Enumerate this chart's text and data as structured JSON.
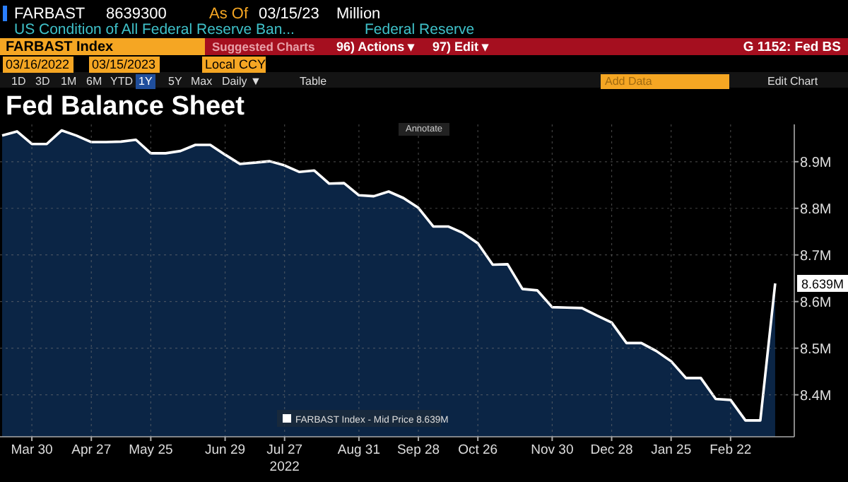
{
  "chart_data": {
    "type": "area",
    "title": "Fed Balance Sheet",
    "xlabel": "2022",
    "annotations": [
      "FARBAST",
      "8639300",
      "As Of",
      "03/15/23",
      "Million",
      "US Condition of All Federal Reserve Ban...",
      "Federal Reserve",
      "FARBAST Index",
      "Suggested Charts",
      "96) Actions ▾",
      "97) Edit ▾",
      "G 1152: Fed BS",
      "03/16/2022",
      "03/15/2023",
      "Local CCY",
      "1D",
      "3D",
      "1M",
      "6M",
      "YTD",
      "1Y",
      "5Y",
      "Max",
      "Daily ▼",
      "Table",
      "Add Data",
      "Edit Chart",
      "Annotate",
      {
        "text": "8.639M",
        "x": "2023-03-15",
        "y": 8.639
      }
    ],
    "x": [
      "2022-03-16",
      "2022-03-23",
      "2022-03-30",
      "2022-04-06",
      "2022-04-13",
      "2022-04-20",
      "2022-04-27",
      "2022-05-04",
      "2022-05-11",
      "2022-05-18",
      "2022-05-25",
      "2022-06-01",
      "2022-06-08",
      "2022-06-15",
      "2022-06-22",
      "2022-06-29",
      "2022-07-06",
      "2022-07-13",
      "2022-07-20",
      "2022-07-27",
      "2022-08-03",
      "2022-08-10",
      "2022-08-17",
      "2022-08-24",
      "2022-08-31",
      "2022-09-07",
      "2022-09-14",
      "2022-09-21",
      "2022-09-28",
      "2022-10-05",
      "2022-10-12",
      "2022-10-19",
      "2022-10-26",
      "2022-11-02",
      "2022-11-09",
      "2022-11-16",
      "2022-11-23",
      "2022-11-30",
      "2022-12-07",
      "2022-12-14",
      "2022-12-21",
      "2022-12-28",
      "2023-01-04",
      "2023-01-11",
      "2023-01-18",
      "2023-01-25",
      "2023-02-01",
      "2023-02-08",
      "2023-02-15",
      "2023-02-22",
      "2023-03-01",
      "2023-03-08",
      "2023-03-15"
    ],
    "series": [
      {
        "name": "FARBAST Index - Mid Price 8.639M",
        "color": "#ffffff",
        "values": [
          8.956,
          8.965,
          8.938,
          8.938,
          8.967,
          8.956,
          8.942,
          8.942,
          8.943,
          8.947,
          8.918,
          8.918,
          8.923,
          8.936,
          8.936,
          8.915,
          8.895,
          8.898,
          8.901,
          8.892,
          8.878,
          8.881,
          8.853,
          8.854,
          8.828,
          8.826,
          8.836,
          8.822,
          8.801,
          8.761,
          8.761,
          8.747,
          8.725,
          8.679,
          8.68,
          8.627,
          8.624,
          8.588,
          8.587,
          8.586,
          8.57,
          8.555,
          8.511,
          8.511,
          8.494,
          8.472,
          8.436,
          8.436,
          8.391,
          8.389,
          8.345,
          8.345,
          8.639
        ]
      }
    ],
    "xlim": [
      "2022-03-15",
      "2023-03-24"
    ],
    "xticks": [
      {
        "value": "2022-03-30",
        "label": "Mar 30"
      },
      {
        "value": "2022-04-27",
        "label": "Apr 27"
      },
      {
        "value": "2022-05-25",
        "label": "May 25"
      },
      {
        "value": "2022-06-29",
        "label": "Jun 29"
      },
      {
        "value": "2022-07-27",
        "label": "Jul 27"
      },
      {
        "value": "2022-08-31",
        "label": "Aug 31"
      },
      {
        "value": "2022-09-28",
        "label": "Sep 28"
      },
      {
        "value": "2022-10-26",
        "label": "Oct 26"
      },
      {
        "value": "2022-11-30",
        "label": "Nov 30"
      },
      {
        "value": "2022-12-28",
        "label": "Dec 28"
      },
      {
        "value": "2023-01-25",
        "label": "Jan 25"
      },
      {
        "value": "2023-02-22",
        "label": "Feb 22"
      }
    ],
    "ylim": [
      8.31,
      8.98
    ],
    "yticks": [
      {
        "value": 8.4,
        "label": "8.4M"
      },
      {
        "value": 8.5,
        "label": "8.5M"
      },
      {
        "value": 8.6,
        "label": "8.6M"
      },
      {
        "value": 8.7,
        "label": "8.7M"
      },
      {
        "value": 8.8,
        "label": "8.8M"
      },
      {
        "value": 8.9,
        "label": "8.9M"
      }
    ],
    "grid": true,
    "legend": "bottom",
    "line_style": "solid"
  }
}
